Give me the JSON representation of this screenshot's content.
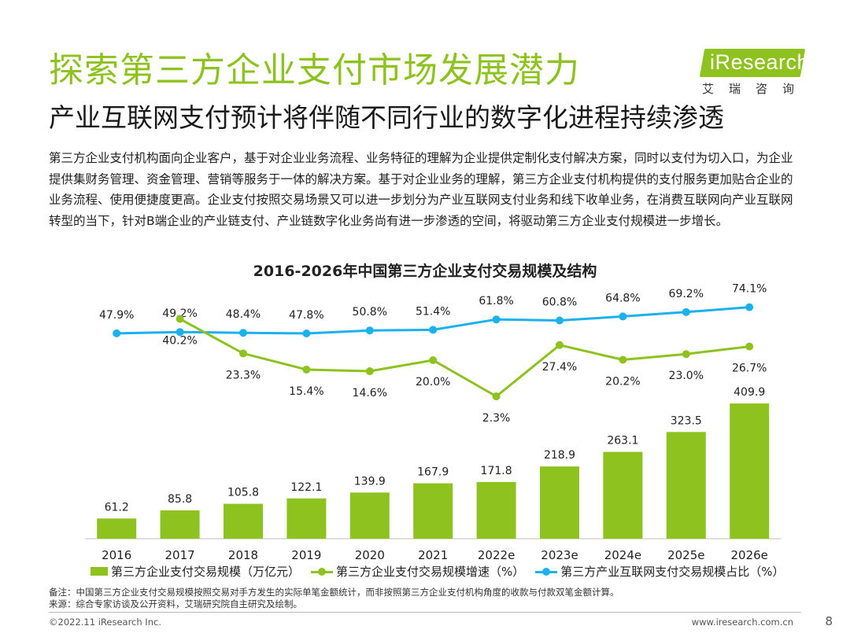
{
  "header": {
    "title": "探索第三方企业支付市场发展潜力",
    "subtitle": "产业互联网支付预计将伴随不同行业的数字化进程持续渗透"
  },
  "logo": {
    "brand": "iResearch",
    "chinese": "艾瑞咨询"
  },
  "body_text": "第三方企业支付机构面向企业客户，基于对企业业务流程、业务特征的理解为企业提供定制化支付解决方案，同时以支付为切入口，为企业提供集财务管理、资金管理、营销等服务于一体的解决方案。基于对企业业务的理解，第三方企业支付机构提供的支付服务更加贴合企业的业务流程、使用便捷度更高。企业支付按照交易场景又可以进一步划分为产业互联网支付业务和线下收单业务，在消费互联网向产业互联网转型的当下，针对B端企业的产业链支付、产业链数字化业务尚有进一步渗透的空间，将驱动第三方企业支付规模进一步增长。",
  "chart_data": {
    "type": "bar",
    "title": "2016-2026年中国第三方企业支付交易规模及结构",
    "categories": [
      "2016",
      "2017",
      "2018",
      "2019",
      "2020",
      "2021",
      "2022e",
      "2023e",
      "2024e",
      "2025e",
      "2026e"
    ],
    "series": [
      {
        "name": "第三方企业支付交易规模（万亿元）",
        "kind": "bar",
        "color": "#8dc21f",
        "values": [
          61.2,
          85.8,
          105.8,
          122.1,
          139.9,
          167.9,
          171.8,
          218.9,
          263.1,
          323.5,
          409.9
        ],
        "labels": [
          "61.2",
          "85.8",
          "105.8",
          "122.1",
          "139.9",
          "167.9",
          "171.8",
          "218.9",
          "263.1",
          "323.5",
          "409.9"
        ]
      },
      {
        "name": "第三方企业支付交易规模增速（%）",
        "kind": "line",
        "color": "#8dc21f",
        "values": [
          null,
          40.2,
          23.3,
          15.4,
          14.6,
          20.0,
          2.3,
          27.4,
          20.2,
          23.0,
          26.7
        ],
        "labels": [
          "",
          "40.2%",
          "23.3%",
          "15.4%",
          "14.6%",
          "20.0%",
          "2.3%",
          "27.4%",
          "20.2%",
          "23.0%",
          "26.7%"
        ]
      },
      {
        "name": "第三方产业互联网支付交易规模占比（%）",
        "kind": "line",
        "color": "#1ab1ec",
        "values": [
          47.9,
          49.2,
          48.4,
          47.8,
          50.8,
          51.4,
          61.8,
          60.8,
          64.8,
          69.2,
          74.1
        ],
        "labels": [
          "47.9%",
          "49.2%",
          "48.4%",
          "47.8%",
          "50.8%",
          "51.4%",
          "61.8%",
          "60.8%",
          "64.8%",
          "69.2%",
          "74.1%"
        ]
      }
    ],
    "legend": "bottom",
    "grid": false
  },
  "notes": {
    "note": "备注：中国第三方企业支付交易规模按照交易对手方发生的实际单笔金额统计，而非按照第三方企业支付机构角度的收款与付款双笔金额计算。",
    "source": "来源：综合专家访谈及公开资料，艾瑞研究院自主研究及绘制。"
  },
  "footer": {
    "copyright": "©2022.11 iResearch Inc.",
    "site": "www.iresearch.com.cn",
    "page": "8"
  }
}
